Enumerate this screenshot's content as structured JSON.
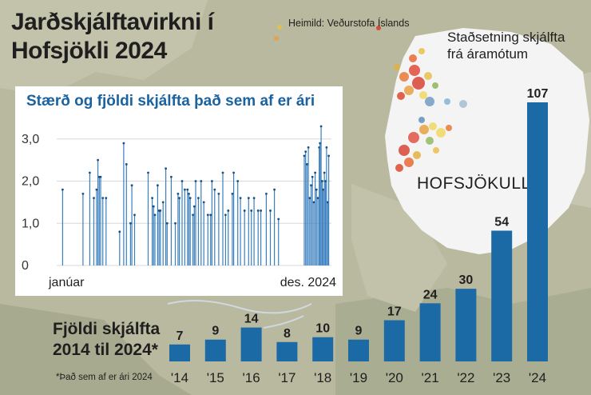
{
  "title": "Jarðskjálftavirkni í Hofsjökli 2024",
  "source": "Heimild: Veðurstofa Íslands",
  "map": {
    "location_caption": "Staðsetning skjálfta frá áramótum",
    "glacier_label": "HOFSJÖKULL"
  },
  "inset": {
    "title": "Stærð og fjöldi skjálfta það sem af er ári",
    "x_start_label": "janúar",
    "x_end_label": "des. 2024"
  },
  "bars_section": {
    "label_line1": "Fjöldi skjálfta",
    "label_line2": "2014 til 2024*",
    "footnote": "*Það sem af er ári 2024"
  },
  "colors": {
    "bar": "#1b6aa5",
    "inset_line": "#3a7fbf",
    "title_blue": "#1a62a0",
    "glacier": "#f4f4f4"
  },
  "chart_data": [
    {
      "type": "bar",
      "title": "Fjöldi skjálfta 2014 til 2024*",
      "categories": [
        "'14",
        "'15",
        "'16",
        "'17",
        "'18",
        "'19",
        "'20",
        "'21",
        "'22",
        "'23",
        "'24"
      ],
      "values": [
        7,
        9,
        14,
        8,
        10,
        9,
        17,
        24,
        30,
        54,
        107
      ],
      "ylim": [
        0,
        107
      ]
    },
    {
      "type": "scatter",
      "title": "Stærð og fjöldi skjálfta það sem af er ári",
      "xlabel": "",
      "ylabel": "",
      "x_range": [
        0,
        1
      ],
      "ylim": [
        0,
        3.3
      ],
      "yticks": [
        0,
        1.0,
        2.0,
        3.0
      ],
      "ytick_labels": [
        "0",
        "1,0",
        "2,0",
        "3,0"
      ],
      "x_tick_labels": [
        "janúar",
        "des. 2024"
      ],
      "style": "stem",
      "x": [
        0.01,
        0.085,
        0.11,
        0.125,
        0.135,
        0.14,
        0.145,
        0.15,
        0.158,
        0.17,
        0.22,
        0.235,
        0.245,
        0.26,
        0.265,
        0.275,
        0.325,
        0.34,
        0.345,
        0.35,
        0.36,
        0.365,
        0.37,
        0.38,
        0.39,
        0.395,
        0.41,
        0.425,
        0.435,
        0.44,
        0.45,
        0.46,
        0.47,
        0.475,
        0.48,
        0.49,
        0.495,
        0.5,
        0.51,
        0.52,
        0.53,
        0.545,
        0.555,
        0.56,
        0.57,
        0.585,
        0.6,
        0.61,
        0.62,
        0.635,
        0.64,
        0.655,
        0.665,
        0.68,
        0.695,
        0.705,
        0.715,
        0.73,
        0.74,
        0.76,
        0.775,
        0.79,
        0.805,
        0.9,
        0.905,
        0.91,
        0.915,
        0.92,
        0.925,
        0.93,
        0.935,
        0.94,
        0.945,
        0.95,
        0.955,
        0.958,
        0.962,
        0.966,
        0.97,
        0.974,
        0.978,
        0.982,
        0.986,
        0.99
      ],
      "y": [
        1.8,
        1.7,
        2.2,
        1.6,
        1.8,
        2.5,
        2.1,
        2.1,
        1.6,
        1.6,
        0.8,
        2.9,
        2.4,
        1.0,
        1.9,
        1.2,
        2.2,
        1.6,
        1.4,
        1.2,
        1.9,
        1.3,
        1.3,
        1.5,
        2.3,
        1.0,
        2.1,
        1.0,
        1.7,
        1.6,
        2.0,
        1.8,
        1.8,
        1.7,
        1.6,
        1.2,
        1.4,
        2.0,
        1.6,
        2.0,
        1.5,
        1.2,
        1.2,
        2.0,
        1.8,
        1.7,
        2.2,
        1.2,
        1.3,
        1.7,
        2.2,
        2.0,
        1.6,
        1.3,
        1.6,
        1.3,
        1.6,
        1.3,
        1.3,
        1.7,
        1.3,
        1.8,
        1.1,
        2.6,
        2.7,
        2.4,
        2.8,
        1.6,
        1.9,
        2.1,
        1.5,
        2.2,
        1.8,
        1.6,
        2.8,
        2.9,
        3.3,
        2.0,
        1.8,
        2.2,
        2.0,
        2.8,
        1.5,
        2.6
      ]
    }
  ]
}
